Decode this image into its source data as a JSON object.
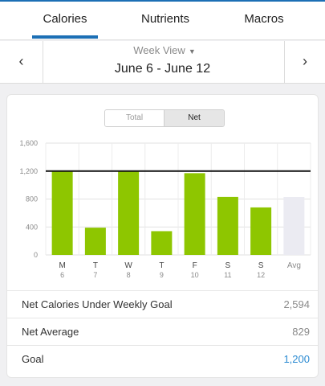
{
  "tabs": [
    {
      "label": "Calories"
    },
    {
      "label": "Nutrients"
    },
    {
      "label": "Macros"
    }
  ],
  "date_nav": {
    "view_label": "Week View",
    "range": "June 6 - June 12",
    "prev_icon": "chevron-left-icon",
    "next_icon": "chevron-right-icon"
  },
  "toggle": {
    "total_label": "Total",
    "net_label": "Net",
    "selected": "Net"
  },
  "chart_data": {
    "type": "bar",
    "categories": [
      "M",
      "T",
      "W",
      "T",
      "F",
      "S",
      "S",
      "Avg"
    ],
    "day_numbers": [
      "6",
      "7",
      "8",
      "9",
      "10",
      "11",
      "12",
      ""
    ],
    "values": [
      1200,
      390,
      1200,
      340,
      1170,
      830,
      680,
      829
    ],
    "ylim": [
      0,
      1600
    ],
    "yticks": [
      0,
      400,
      800,
      1200,
      1600
    ],
    "ytick_labels": [
      "0",
      "400",
      "800",
      "1,200",
      "1,600"
    ],
    "goal_line": 1200,
    "grid": true,
    "bar_color": "#8ec600",
    "avg_bar_color": "#ebebf2",
    "goal_line_color": "#111111"
  },
  "summary": {
    "rows": [
      {
        "label": "Net Calories Under Weekly Goal",
        "value": "2,594"
      },
      {
        "label": "Net Average",
        "value": "829"
      },
      {
        "label": "Goal",
        "value": "1,200"
      }
    ]
  },
  "colors": {
    "accent": "#1c6fb5",
    "goal_value": "#2a8ad2"
  }
}
